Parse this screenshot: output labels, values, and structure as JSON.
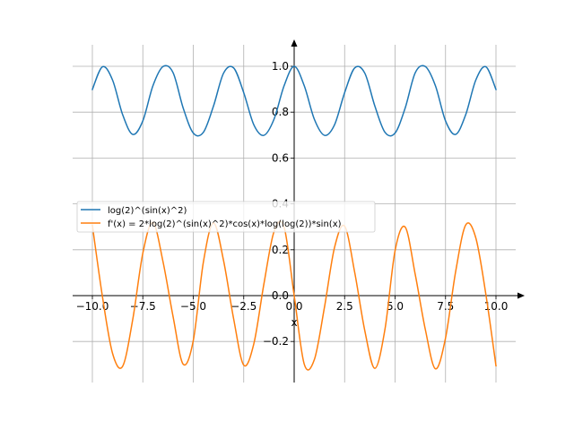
{
  "chart_data": {
    "type": "line",
    "title": "",
    "xlabel": "x",
    "ylabel": "",
    "xlim": [
      -10.0,
      10.0
    ],
    "ylim": [
      -0.3,
      1.0
    ],
    "grid": true,
    "legend_position": "center-left",
    "x_ticks": [
      -10.0,
      -7.5,
      -5.0,
      -2.5,
      0.0,
      2.5,
      5.0,
      7.5,
      10.0
    ],
    "x_tick_labels": [
      "−10.0",
      "−7.5",
      "−5.0",
      "−2.5",
      "0.0",
      "2.5",
      "5.0",
      "7.5",
      "10.0"
    ],
    "y_ticks": [
      -0.2,
      0.0,
      0.2,
      0.4,
      0.6,
      0.8,
      1.0
    ],
    "y_tick_labels": [
      "−0.2",
      "0.0",
      "0.2",
      "0.4",
      "0.6",
      "0.8",
      "1.0"
    ],
    "series": [
      {
        "name": "log(2)^(sin(x)^2)",
        "color": "#1f77b4",
        "x": [
          -10.0,
          -9.5,
          -9.0,
          -8.5,
          -8.0,
          -7.5,
          -7.0,
          -6.5,
          -6.0,
          -5.5,
          -5.0,
          -4.5,
          -4.0,
          -3.5,
          -3.0,
          -2.5,
          -2.0,
          -1.5,
          -1.0,
          -0.5,
          0.0,
          0.5,
          1.0,
          1.5,
          2.0,
          2.5,
          3.0,
          3.5,
          4.0,
          4.5,
          5.0,
          5.5,
          6.0,
          6.5,
          7.0,
          7.5,
          8.0,
          8.5,
          9.0,
          9.5,
          10.0
        ],
        "y": [
          0.899,
          0.998,
          0.94,
          0.789,
          0.703,
          0.762,
          0.915,
          0.999,
          0.972,
          0.818,
          0.709,
          0.712,
          0.826,
          0.97,
          0.993,
          0.885,
          0.745,
          0.699,
          0.769,
          0.915,
          1.0,
          0.915,
          0.769,
          0.699,
          0.745,
          0.885,
          0.993,
          0.97,
          0.826,
          0.712,
          0.709,
          0.818,
          0.972,
          0.999,
          0.915,
          0.762,
          0.703,
          0.789,
          0.94,
          0.998,
          0.899
        ]
      },
      {
        "name": "f'(x) = 2*log(2)^(sin(x)^2)*cos(x)*log(log(2))*sin(x)",
        "color": "#ff7f0e",
        "x": [
          -10.0,
          -9.5,
          -9.0,
          -8.5,
          -8.0,
          -7.5,
          -7.0,
          -6.5,
          -6.0,
          -5.5,
          -5.0,
          -4.5,
          -4.0,
          -3.5,
          -3.0,
          -2.5,
          -2.0,
          -1.5,
          -1.0,
          -0.5,
          0.0,
          0.5,
          1.0,
          1.5,
          2.0,
          2.5,
          3.0,
          3.5,
          4.0,
          4.5,
          5.0,
          5.5,
          6.0,
          6.5,
          7.0,
          7.5,
          8.0,
          8.5,
          9.0,
          9.5,
          10.0
        ],
        "y": [
          0.306,
          -0.005,
          -0.252,
          -0.308,
          -0.104,
          0.185,
          0.319,
          0.148,
          -0.092,
          -0.299,
          -0.196,
          0.146,
          0.317,
          0.153,
          -0.101,
          -0.303,
          -0.21,
          0.051,
          0.279,
          0.299,
          0.0,
          -0.299,
          -0.279,
          -0.051,
          0.21,
          0.303,
          0.101,
          -0.153,
          -0.317,
          -0.146,
          0.196,
          0.299,
          0.092,
          -0.148,
          -0.319,
          -0.185,
          0.104,
          0.308,
          0.252,
          0.005,
          -0.306
        ]
      }
    ]
  }
}
